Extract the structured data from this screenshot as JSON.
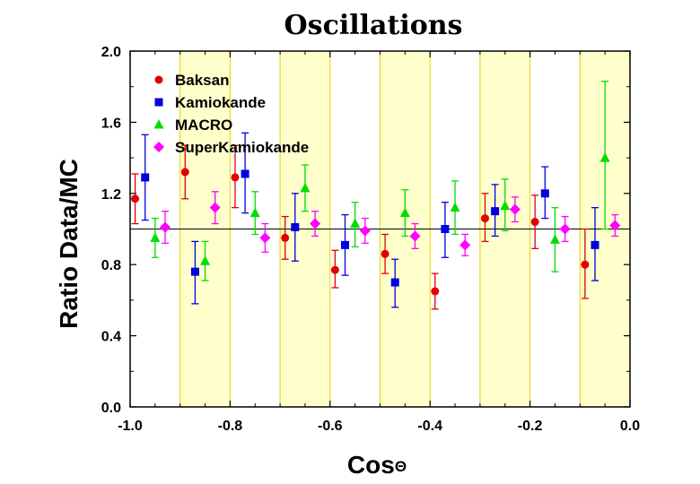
{
  "chart_data": {
    "type": "scatter",
    "title": "Oscillations",
    "xlabel": "Cos",
    "xlabel_symbol": "Θ",
    "ylabel": "Ratio Data/MC",
    "xlim": [
      -1.0,
      0.0
    ],
    "ylim": [
      0.0,
      2.0
    ],
    "xticks": [
      -1.0,
      -0.8,
      -0.6,
      -0.4,
      -0.2,
      0.0
    ],
    "xtick_labels": [
      "-1.0",
      "-0.8",
      "-0.6",
      "-0.4",
      "-0.2",
      "0.0"
    ],
    "yticks": [
      0.0,
      0.4,
      0.8,
      1.2,
      1.6,
      2.0
    ],
    "ytick_labels": [
      "0.0",
      "0.4",
      "0.8",
      "1.2",
      "1.6",
      "2.0"
    ],
    "reference_line": 1.0,
    "shaded_bands": [
      [
        -0.9,
        -0.8
      ],
      [
        -0.7,
        -0.6
      ],
      [
        -0.5,
        -0.4
      ],
      [
        -0.3,
        -0.2
      ],
      [
        -0.1,
        0.0
      ]
    ],
    "band_color": "#ffffcc",
    "band_edge_color": "#e6d200",
    "legend_position": "top-left",
    "series": [
      {
        "name": "Baksan",
        "marker": "circle",
        "color": "#e00000",
        "points": [
          {
            "x": -0.99,
            "y": 1.17,
            "lo": 1.03,
            "hi": 1.31
          },
          {
            "x": -0.89,
            "y": 1.32,
            "lo": 1.17,
            "hi": 1.47
          },
          {
            "x": -0.79,
            "y": 1.29,
            "lo": 1.12,
            "hi": 1.47
          },
          {
            "x": -0.69,
            "y": 0.95,
            "lo": 0.83,
            "hi": 1.07
          },
          {
            "x": -0.59,
            "y": 0.77,
            "lo": 0.67,
            "hi": 0.88
          },
          {
            "x": -0.49,
            "y": 0.86,
            "lo": 0.75,
            "hi": 0.97
          },
          {
            "x": -0.39,
            "y": 0.65,
            "lo": 0.55,
            "hi": 0.75
          },
          {
            "x": -0.29,
            "y": 1.06,
            "lo": 0.93,
            "hi": 1.2
          },
          {
            "x": -0.19,
            "y": 1.04,
            "lo": 0.89,
            "hi": 1.19
          },
          {
            "x": -0.09,
            "y": 0.8,
            "lo": 0.61,
            "hi": 1.0
          }
        ]
      },
      {
        "name": "Kamiokande",
        "marker": "square",
        "color": "#0000e0",
        "points": [
          {
            "x": -0.97,
            "y": 1.29,
            "lo": 1.05,
            "hi": 1.53
          },
          {
            "x": -0.87,
            "y": 0.76,
            "lo": 0.58,
            "hi": 0.93
          },
          {
            "x": -0.77,
            "y": 1.31,
            "lo": 1.09,
            "hi": 1.54
          },
          {
            "x": -0.67,
            "y": 1.01,
            "lo": 0.82,
            "hi": 1.2
          },
          {
            "x": -0.57,
            "y": 0.91,
            "lo": 0.74,
            "hi": 1.08
          },
          {
            "x": -0.47,
            "y": 0.7,
            "lo": 0.56,
            "hi": 0.83
          },
          {
            "x": -0.37,
            "y": 1.0,
            "lo": 0.84,
            "hi": 1.15
          },
          {
            "x": -0.27,
            "y": 1.1,
            "lo": 0.96,
            "hi": 1.25
          },
          {
            "x": -0.17,
            "y": 1.2,
            "lo": 1.06,
            "hi": 1.35
          },
          {
            "x": -0.07,
            "y": 0.91,
            "lo": 0.71,
            "hi": 1.12
          }
        ]
      },
      {
        "name": "MACRO",
        "marker": "triangle",
        "color": "#00dd00",
        "points": [
          {
            "x": -0.95,
            "y": 0.95,
            "lo": 0.84,
            "hi": 1.06
          },
          {
            "x": -0.85,
            "y": 0.82,
            "lo": 0.71,
            "hi": 0.93
          },
          {
            "x": -0.75,
            "y": 1.09,
            "lo": 0.97,
            "hi": 1.21
          },
          {
            "x": -0.65,
            "y": 1.23,
            "lo": 1.1,
            "hi": 1.36
          },
          {
            "x": -0.55,
            "y": 1.03,
            "lo": 0.9,
            "hi": 1.15
          },
          {
            "x": -0.45,
            "y": 1.09,
            "lo": 0.96,
            "hi": 1.22
          },
          {
            "x": -0.35,
            "y": 1.12,
            "lo": 0.97,
            "hi": 1.27
          },
          {
            "x": -0.25,
            "y": 1.13,
            "lo": 0.99,
            "hi": 1.28
          },
          {
            "x": -0.15,
            "y": 0.94,
            "lo": 0.76,
            "hi": 1.12
          },
          {
            "x": -0.05,
            "y": 1.4,
            "lo": 1.0,
            "hi": 1.83
          }
        ]
      },
      {
        "name": "SuperKamiokande",
        "marker": "diamond",
        "color": "#ff00ff",
        "points": [
          {
            "x": -0.93,
            "y": 1.01,
            "lo": 0.92,
            "hi": 1.1
          },
          {
            "x": -0.83,
            "y": 1.12,
            "lo": 1.03,
            "hi": 1.21
          },
          {
            "x": -0.73,
            "y": 0.95,
            "lo": 0.87,
            "hi": 1.03
          },
          {
            "x": -0.63,
            "y": 1.03,
            "lo": 0.96,
            "hi": 1.1
          },
          {
            "x": -0.53,
            "y": 0.99,
            "lo": 0.92,
            "hi": 1.06
          },
          {
            "x": -0.43,
            "y": 0.96,
            "lo": 0.89,
            "hi": 1.03
          },
          {
            "x": -0.33,
            "y": 0.91,
            "lo": 0.85,
            "hi": 0.97
          },
          {
            "x": -0.23,
            "y": 1.11,
            "lo": 1.04,
            "hi": 1.18
          },
          {
            "x": -0.13,
            "y": 1.0,
            "lo": 0.93,
            "hi": 1.07
          },
          {
            "x": -0.03,
            "y": 1.02,
            "lo": 0.96,
            "hi": 1.08
          }
        ]
      }
    ]
  }
}
